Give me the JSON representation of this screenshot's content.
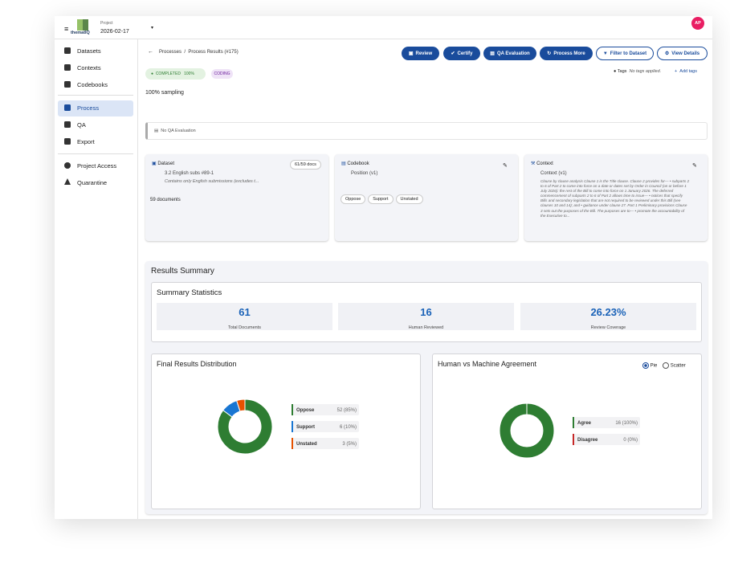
{
  "header": {
    "logo": "thematIQ",
    "project_label": "Project",
    "project_date": "2026-02-17",
    "avatar": "AP"
  },
  "nav": [
    "Datasets",
    "Contexts",
    "Codebooks",
    "Process",
    "QA",
    "Export",
    "Project Access",
    "Quarantine"
  ],
  "breadcrumb": [
    "Processes",
    "Process Results (#175)"
  ],
  "actions": [
    "Review",
    "Certify",
    "QA Evaluation",
    "Process More",
    "Filter to Dataset",
    "View Details"
  ],
  "status": {
    "badge": "COMPLETED",
    "percent": "100%",
    "type": "CODING"
  },
  "tags": {
    "label": "Tags",
    "empty": "No tags applied.",
    "add": "Add tags"
  },
  "sampling": "100% sampling",
  "qa_evaluation": "No QA Evaluation",
  "cards": {
    "dataset": {
      "title": "Dataset",
      "count": "61/59 docs",
      "name": "3.2 English subs #89-1",
      "description": "Contains only English submissions (excludes t...",
      "documents": "59 documents"
    },
    "codebook": {
      "title": "Codebook",
      "version": "Position (v1)",
      "codes": [
        "Oppose",
        "Support",
        "Unstated"
      ]
    },
    "context": {
      "title": "Context",
      "version": "Context (v1)",
      "text": "Clause by clause analysis Clause 1 is the Title clause. Clause 2 provides for— • subparts 2 to 6 of Part 2 to come into force on a date or dates set by Order in Council (on or before 1 July 2026): the rest of the Bill to come into force on 1 January 2026. The deferred commencement of subparts 2 to 6 of Part 2 allows time to issue— • notices that specify Bills and secondary legislation that are not required to be reviewed under this Bill (see clauses 10 and 14); and • guidance under clause 27. Part 1 Preliminary provisions Clause 3 sets out the purposes of the Bill. The purposes are to— • promote the accountability of the Executive to..."
    }
  },
  "results": {
    "title": "Results Summary",
    "summary_title": "Summary Statistics",
    "stats": [
      {
        "value": 61,
        "label": "Total Documents"
      },
      {
        "value": 16,
        "label": "Human Reviewed"
      },
      {
        "value": "26.23%",
        "label": "Review Coverage"
      }
    ]
  },
  "chart_data": [
    {
      "type": "pie",
      "title": "Final Results Distribution",
      "categories": [
        "Oppose",
        "Support",
        "Unstated"
      ],
      "values": [
        52,
        6,
        3
      ],
      "value_labels": [
        "52 (85%)",
        "6 (10%)",
        "3 (5%)"
      ],
      "colors": [
        "#2e7d32",
        "#1976d2",
        "#e65100"
      ]
    },
    {
      "type": "pie",
      "title": "Human vs Machine Agreement",
      "options": [
        "Pie",
        "Scatter"
      ],
      "categories": [
        "Agree",
        "Disagree"
      ],
      "values": [
        16,
        0
      ],
      "value_labels": [
        "16 (100%)",
        "0 (0%)"
      ],
      "colors": [
        "#2e7d32",
        "#c62828"
      ]
    }
  ]
}
